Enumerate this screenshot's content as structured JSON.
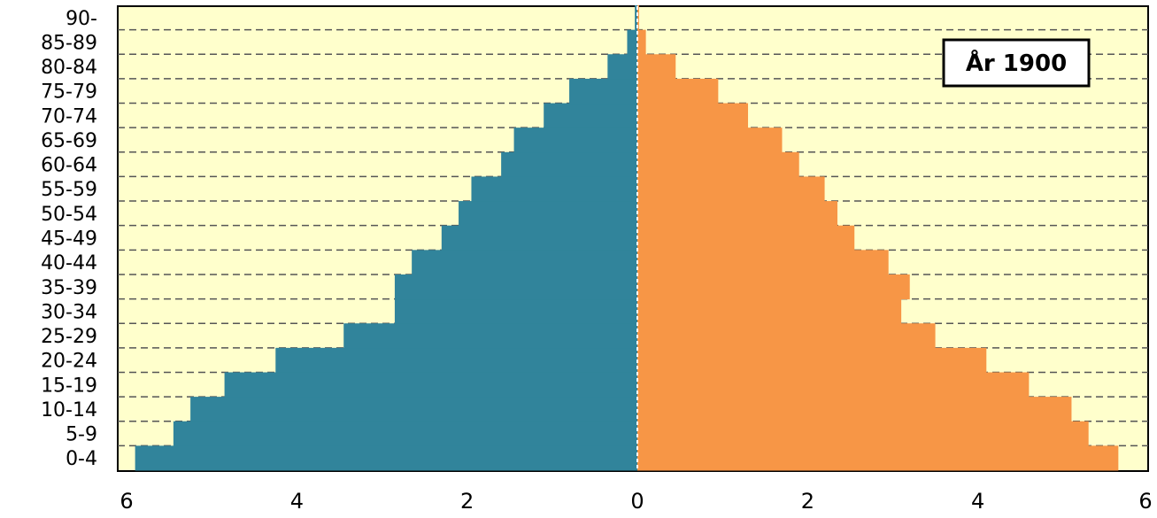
{
  "chart_data": {
    "type": "bar",
    "orientation": "horizontal",
    "subtype": "population-pyramid",
    "title": "",
    "annotation": "År 1900",
    "age_groups": [
      "0-4",
      "5-9",
      "10-14",
      "15-19",
      "20-24",
      "25-29",
      "30-34",
      "35-39",
      "40-44",
      "45-49",
      "50-54",
      "55-59",
      "60-64",
      "65-69",
      "70-74",
      "75-79",
      "80-84",
      "85-89",
      "90-"
    ],
    "series": [
      {
        "side": "left",
        "color": "#31849b",
        "values": [
          5.9,
          5.45,
          5.25,
          4.85,
          4.25,
          3.45,
          2.85,
          2.85,
          2.65,
          2.3,
          2.1,
          1.95,
          1.6,
          1.45,
          1.1,
          0.8,
          0.35,
          0.12,
          0.03
        ]
      },
      {
        "side": "right",
        "color": "#f79646",
        "values": [
          5.65,
          5.3,
          5.1,
          4.6,
          4.1,
          3.5,
          3.1,
          3.2,
          2.95,
          2.55,
          2.35,
          2.2,
          1.9,
          1.7,
          1.3,
          0.95,
          0.45,
          0.1,
          0.02
        ]
      }
    ],
    "x_ticks": [
      "6",
      "4",
      "2",
      "0",
      "2",
      "4",
      "6"
    ],
    "xlim": [
      -6,
      6
    ],
    "grid": "horizontal dashed",
    "plot_background": "#ffffcc",
    "annotation_position": "top-right"
  }
}
